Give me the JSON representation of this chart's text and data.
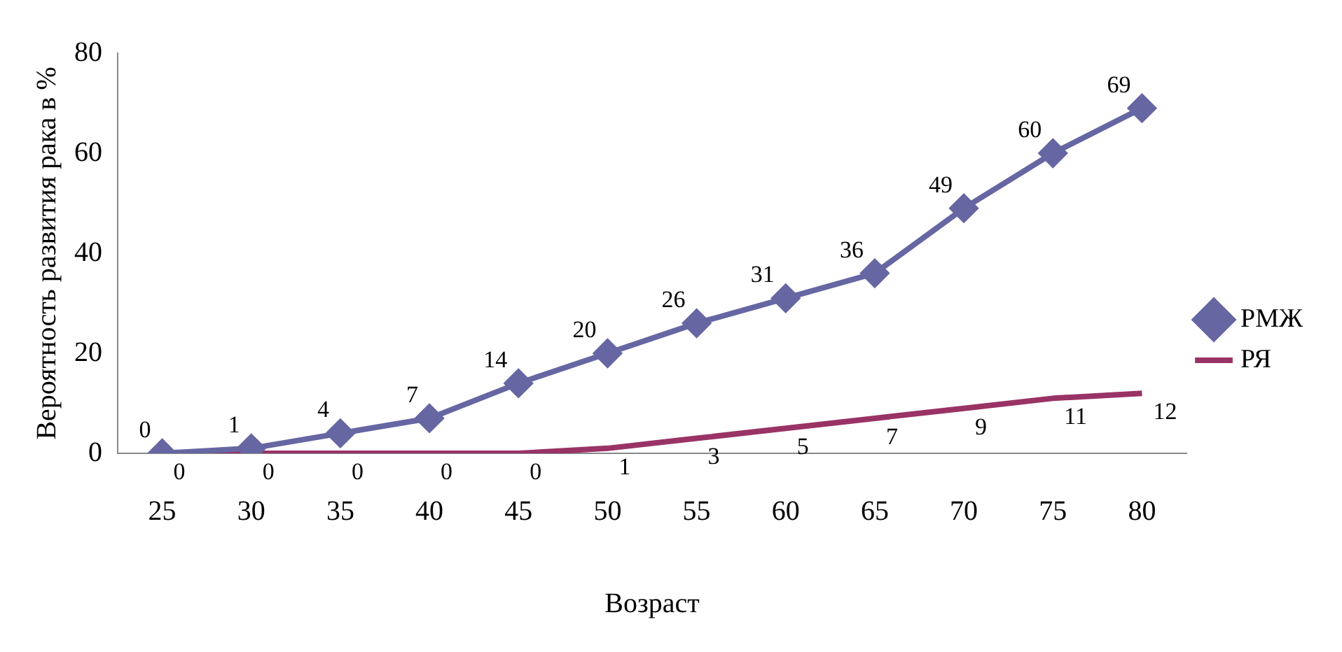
{
  "chart_data": {
    "type": "line",
    "xlabel": "Возраст",
    "ylabel": "Вероятность развития рака в %",
    "categories": [
      "25",
      "30",
      "35",
      "40",
      "45",
      "50",
      "55",
      "60",
      "65",
      "70",
      "75",
      "80"
    ],
    "series": [
      {
        "name": "РМЖ",
        "color": "#6666a3",
        "marker": "diamond",
        "values": [
          0,
          1,
          4,
          7,
          14,
          20,
          26,
          31,
          36,
          49,
          60,
          69
        ]
      },
      {
        "name": "РЯ",
        "color": "#993366",
        "marker": "none",
        "values": [
          0,
          0,
          0,
          0,
          0,
          1,
          3,
          5,
          7,
          9,
          11,
          12
        ]
      }
    ],
    "ylim": [
      0,
      80
    ],
    "yticks": [
      0,
      20,
      40,
      60,
      80
    ],
    "grid": false,
    "legend": "right",
    "data_labels": true
  }
}
